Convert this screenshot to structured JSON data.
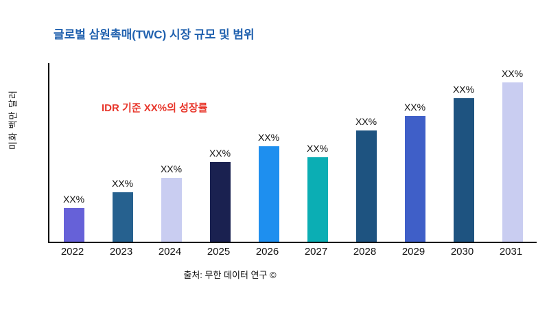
{
  "title": "글로벌 삼원촉매(TWC) 시장 규모 및 범위",
  "title_color": "#1F60AE",
  "annotation": "IDR 기준 XX%의 성장률",
  "annotation_color": "#E8372C",
  "ylabel": "미화 백만 달러",
  "source": "출처: 무한 데이터 연구 ©",
  "chart_data": {
    "type": "bar",
    "title": "글로벌 삼원촉매(TWC) 시장 규모 및 범위",
    "xlabel": "",
    "ylabel": "미화 백만 달러",
    "categories": [
      "2022",
      "2023",
      "2024",
      "2025",
      "2026",
      "2027",
      "2028",
      "2029",
      "2030",
      "2031"
    ],
    "values": [
      21,
      31,
      40,
      50,
      60,
      53,
      70,
      79,
      90,
      100
    ],
    "value_labels": [
      "XX%",
      "XX%",
      "XX%",
      "XX%",
      "XX%",
      "XX%",
      "XX%",
      "XX%",
      "XX%",
      "XX%"
    ],
    "colors": [
      "#6661D8",
      "#26618F",
      "#C9CDF1",
      "#1A2150",
      "#1E8FEF",
      "#0BAEB4",
      "#1E5380",
      "#3F5FC8",
      "#1E5380",
      "#C9CDF1"
    ],
    "ylim": [
      0,
      108
    ],
    "grid": false,
    "legend": "none",
    "annotation": "IDR 기준 XX%의 성장률",
    "units": "relative index (labels shown as XX%)"
  }
}
